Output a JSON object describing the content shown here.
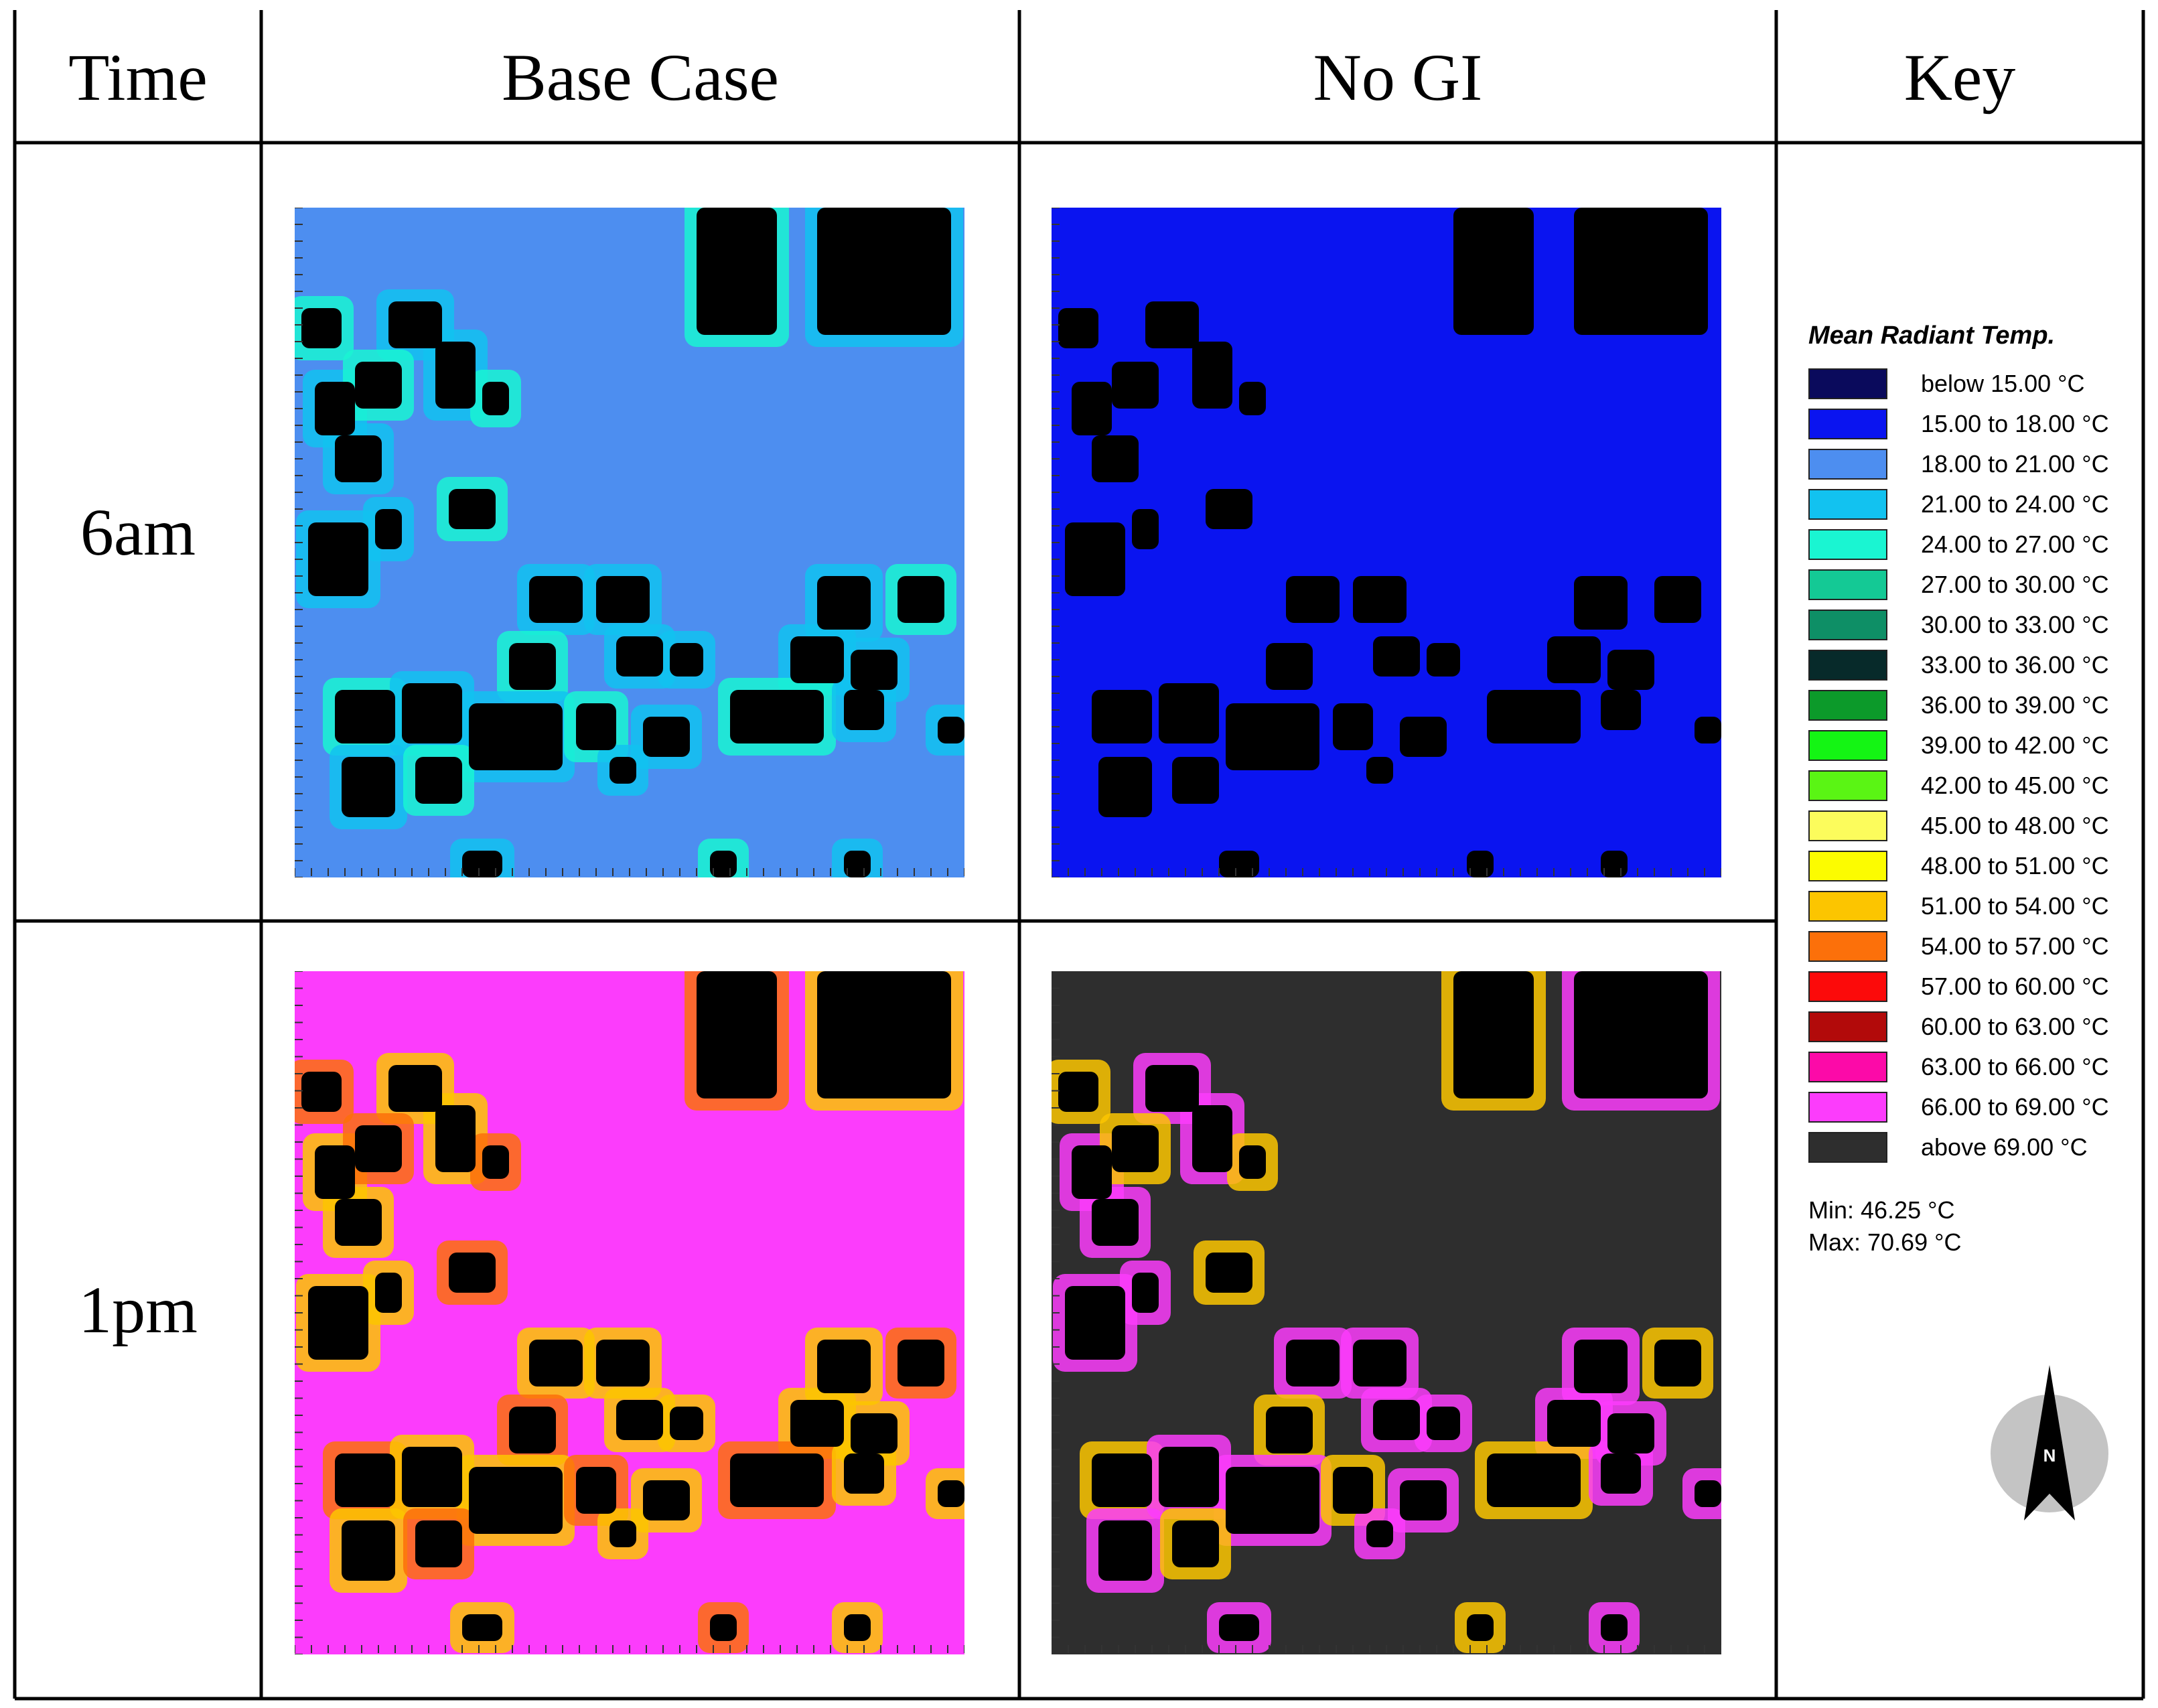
{
  "headers": {
    "time": "Time",
    "base_case": "Base Case",
    "no_gi": "No GI",
    "key": "Key"
  },
  "rows": [
    {
      "label": "6am"
    },
    {
      "label": "1pm"
    }
  ],
  "legend": {
    "title": "Mean Radiant Temp.",
    "items": [
      {
        "label": "below 15.00 °C",
        "color": "#0a0a5c"
      },
      {
        "label": "15.00 to 18.00 °C",
        "color": "#0a14f0"
      },
      {
        "label": "18.00 to 21.00 °C",
        "color": "#4d8ef0"
      },
      {
        "label": "21.00 to 24.00 °C",
        "color": "#12c2f0"
      },
      {
        "label": "24.00 to 27.00 °C",
        "color": "#1af5d2"
      },
      {
        "label": "27.00 to 30.00 °C",
        "color": "#14c995"
      },
      {
        "label": "30.00 to 33.00 °C",
        "color": "#0e8f66"
      },
      {
        "label": "33.00 to 36.00 °C",
        "color": "#072a2a"
      },
      {
        "label": "36.00 to 39.00 °C",
        "color": "#0c9a2a"
      },
      {
        "label": "39.00 to 42.00 °C",
        "color": "#14f514"
      },
      {
        "label": "42.00 to 45.00 °C",
        "color": "#5af514"
      },
      {
        "label": "45.00 to 48.00 °C",
        "color": "#fcfc5c"
      },
      {
        "label": "48.00 to 51.00 °C",
        "color": "#fcfc00"
      },
      {
        "label": "51.00 to 54.00 °C",
        "color": "#fcc500"
      },
      {
        "label": "54.00 to 57.00 °C",
        "color": "#fc700a"
      },
      {
        "label": "57.00 to 60.00 °C",
        "color": "#fc0a0a"
      },
      {
        "label": "60.00 to 63.00 °C",
        "color": "#b20a0a"
      },
      {
        "label": "63.00 to 66.00 °C",
        "color": "#fc0aa8"
      },
      {
        "label": "66.00 to 69.00 °C",
        "color": "#fc3cfc"
      },
      {
        "label": "above 69.00 °C",
        "color": "#2e2e2e"
      }
    ],
    "min": "Min: 46.25 °C",
    "max": "Max: 70.69 °C"
  },
  "compass": {
    "label": "N"
  },
  "maps": {
    "base_6am": {
      "background": "#4d8ef0",
      "accent": "#12c2f0",
      "alt": "#1af5d2"
    },
    "nogi_6am": {
      "background": "#0a14f0",
      "accent": "#0a14f0",
      "alt": "#0a14f0"
    },
    "base_1pm": {
      "background": "#fc3cfc",
      "accent": "#fcc500",
      "alt": "#fc700a"
    },
    "nogi_1pm": {
      "background": "#2e2e2e",
      "accent": "#fc3cfc",
      "alt": "#fcc500"
    }
  }
}
